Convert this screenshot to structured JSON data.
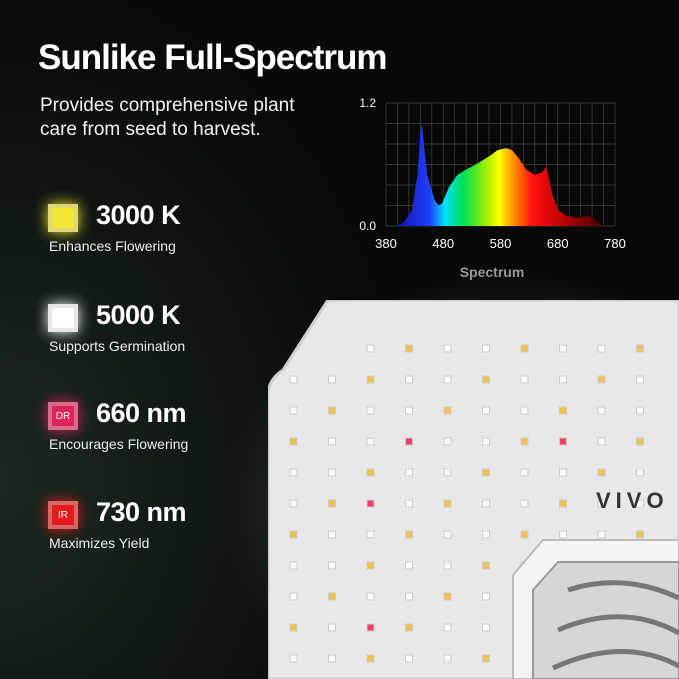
{
  "title": "Sunlike Full-Spectrum",
  "subtitle": "Provides comprehensive plant care from seed to harvest.",
  "features": [
    {
      "value": "3000 K",
      "description": "Enhances Flowering",
      "color": "#f2e534",
      "badge": ""
    },
    {
      "value": "5000 K",
      "description": "Supports Germination",
      "color": "#ffffff",
      "badge": ""
    },
    {
      "value": "660 nm",
      "description": "Encourages Flowering",
      "color": "#e0245a",
      "badge": "DR"
    },
    {
      "value": "730 nm",
      "description": "Maximizes Yield",
      "color": "#e31b1b",
      "badge": "IR"
    }
  ],
  "chart_data": {
    "type": "area",
    "title": "",
    "xlabel": "Spectrum",
    "ylabel": "",
    "xlim": [
      380,
      780
    ],
    "ylim": [
      0,
      1.2
    ],
    "xticks": [
      "380",
      "480",
      "580",
      "680",
      "780"
    ],
    "yticks": [
      "0.0",
      "1.2"
    ],
    "grid": true,
    "x": [
      395,
      410,
      425,
      435,
      440,
      443,
      447,
      452,
      458,
      465,
      472,
      478,
      490,
      505,
      520,
      540,
      560,
      575,
      590,
      600,
      612,
      625,
      640,
      652,
      660,
      665,
      670,
      680,
      695,
      715,
      735,
      750,
      760
    ],
    "y": [
      0,
      0.03,
      0.15,
      0.5,
      0.9,
      1.0,
      0.75,
      0.5,
      0.38,
      0.25,
      0.2,
      0.22,
      0.38,
      0.5,
      0.55,
      0.61,
      0.68,
      0.74,
      0.76,
      0.74,
      0.66,
      0.55,
      0.5,
      0.52,
      0.58,
      0.45,
      0.32,
      0.16,
      0.1,
      0.08,
      0.1,
      0.04,
      0
    ]
  },
  "logo_text": "VIVO"
}
